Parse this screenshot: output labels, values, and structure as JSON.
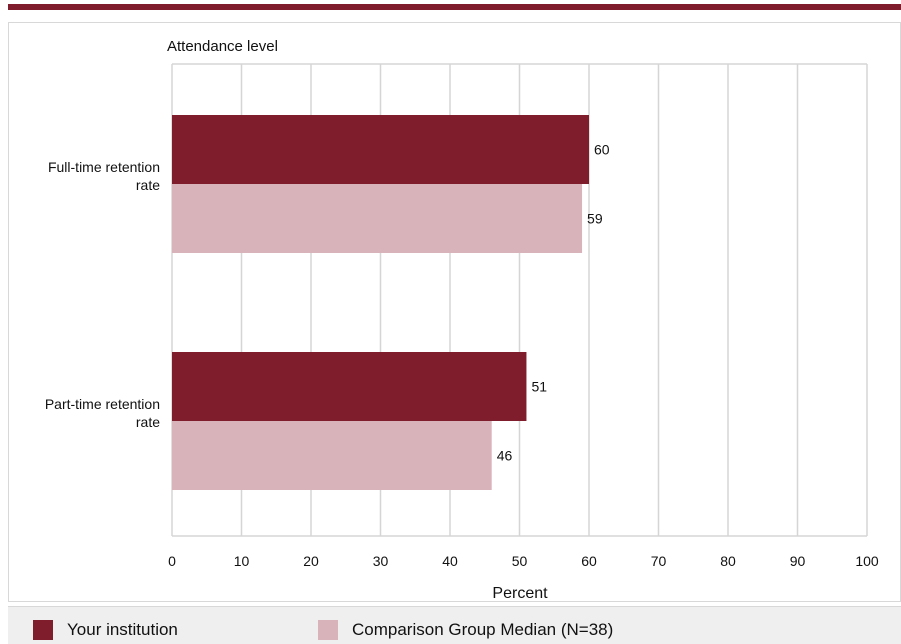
{
  "chart_data": {
    "type": "bar",
    "orientation": "horizontal",
    "title": "Attendance level",
    "xlabel": "Percent",
    "ylabel": "",
    "xlim": [
      0,
      100
    ],
    "xticks": [
      0,
      10,
      20,
      30,
      40,
      50,
      60,
      70,
      80,
      90,
      100
    ],
    "categories": [
      "Full-time retention rate",
      "Part-time retention rate"
    ],
    "category_lines": [
      [
        "Full-time retention",
        "rate"
      ],
      [
        "Part-time retention",
        "rate"
      ]
    ],
    "series": [
      {
        "name": "Your institution",
        "color": "#7f1d2c",
        "values": [
          60,
          51
        ]
      },
      {
        "name": "Comparison Group Median (N=38)",
        "color": "#d8b3b9",
        "values": [
          59,
          46
        ]
      }
    ],
    "grid": true,
    "data_labels": true,
    "legend_position": "bottom-left"
  },
  "colors": {
    "accent": "#7f1d2c",
    "comparison": "#d8b3b9",
    "grid": "#d5d5d5"
  }
}
